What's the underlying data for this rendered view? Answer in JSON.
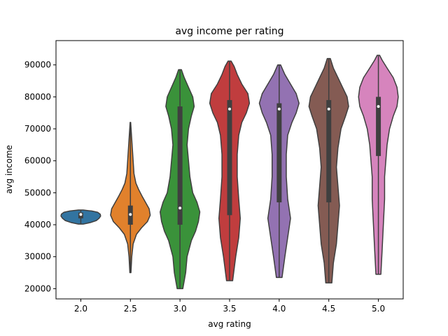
{
  "chart_data": {
    "type": "violin",
    "title": "avg income per rating",
    "xlabel": "avg rating",
    "ylabel": "avg income",
    "categories": [
      "2.0",
      "2.5",
      "3.0",
      "3.5",
      "4.0",
      "4.5",
      "5.0"
    ],
    "ylim": [
      16800,
      97600
    ],
    "yticks": [
      "20000",
      "30000",
      "40000",
      "50000",
      "60000",
      "70000",
      "80000",
      "90000"
    ],
    "grid": false,
    "legend": "none",
    "series": [
      {
        "category": "2.0",
        "color": "#3274a1",
        "min": 40200,
        "max": 44600,
        "q1": 42000,
        "q3": 43800,
        "median": 43200,
        "density": [
          [
            40200,
            0.12
          ],
          [
            40700,
            0.5
          ],
          [
            41300,
            0.78
          ],
          [
            42000,
            0.92
          ],
          [
            42700,
            1.0
          ],
          [
            43300,
            0.98
          ],
          [
            43900,
            0.85
          ],
          [
            44300,
            0.55
          ],
          [
            44600,
            0.12
          ]
        ]
      },
      {
        "category": "2.5",
        "color": "#e1812c",
        "min": 25000,
        "max": 72000,
        "q1": 40000,
        "q3": 46000,
        "median": 43200,
        "density": [
          [
            25000,
            0.02
          ],
          [
            30000,
            0.05
          ],
          [
            34000,
            0.1
          ],
          [
            37000,
            0.22
          ],
          [
            39000,
            0.4
          ],
          [
            41000,
            0.62
          ],
          [
            43000,
            0.72
          ],
          [
            45000,
            0.68
          ],
          [
            47000,
            0.55
          ],
          [
            49000,
            0.42
          ],
          [
            51000,
            0.3
          ],
          [
            53000,
            0.2
          ],
          [
            56000,
            0.13
          ],
          [
            60000,
            0.1
          ],
          [
            64000,
            0.07
          ],
          [
            68000,
            0.04
          ],
          [
            72000,
            0.01
          ]
        ]
      },
      {
        "category": "3.0",
        "color": "#3a923a",
        "min": 20000,
        "max": 88500,
        "q1": 40000,
        "q3": 77000,
        "median": 45200,
        "density": [
          [
            20000,
            0.02
          ],
          [
            25000,
            0.04
          ],
          [
            30000,
            0.05
          ],
          [
            35000,
            0.08
          ],
          [
            38000,
            0.11
          ],
          [
            41000,
            0.13
          ],
          [
            44000,
            0.14
          ],
          [
            47000,
            0.12
          ],
          [
            50000,
            0.09
          ],
          [
            55000,
            0.07
          ],
          [
            60000,
            0.06
          ],
          [
            65000,
            0.05
          ],
          [
            70000,
            0.06
          ],
          [
            74000,
            0.08
          ],
          [
            77000,
            0.1
          ],
          [
            80000,
            0.09
          ],
          [
            83000,
            0.06
          ],
          [
            86000,
            0.03
          ],
          [
            88500,
            0.01
          ]
        ]
      },
      {
        "category": "3.5",
        "color": "#c03d3e",
        "min": 22500,
        "max": 91200,
        "q1": 43000,
        "q3": 79000,
        "median": 76200,
        "density": [
          [
            22500,
            0.02
          ],
          [
            30000,
            0.04
          ],
          [
            36000,
            0.06
          ],
          [
            42000,
            0.07
          ],
          [
            48000,
            0.06
          ],
          [
            55000,
            0.05
          ],
          [
            62000,
            0.05
          ],
          [
            68000,
            0.06
          ],
          [
            72000,
            0.08
          ],
          [
            75000,
            0.11
          ],
          [
            78000,
            0.13
          ],
          [
            81000,
            0.12
          ],
          [
            84000,
            0.08
          ],
          [
            87000,
            0.05
          ],
          [
            89500,
            0.03
          ],
          [
            91200,
            0.01
          ]
        ]
      },
      {
        "category": "4.0",
        "color": "#9372b2",
        "min": 23500,
        "max": 90000,
        "q1": 47000,
        "q3": 78000,
        "median": 76200,
        "density": [
          [
            23500,
            0.02
          ],
          [
            30000,
            0.04
          ],
          [
            36000,
            0.06
          ],
          [
            42000,
            0.08
          ],
          [
            48000,
            0.06
          ],
          [
            55000,
            0.05
          ],
          [
            62000,
            0.05
          ],
          [
            68000,
            0.06
          ],
          [
            72000,
            0.09
          ],
          [
            75000,
            0.12
          ],
          [
            78000,
            0.14
          ],
          [
            81000,
            0.12
          ],
          [
            84000,
            0.08
          ],
          [
            87000,
            0.04
          ],
          [
            90000,
            0.01
          ]
        ]
      },
      {
        "category": "4.5",
        "color": "#845b53",
        "min": 21800,
        "max": 92000,
        "q1": 47000,
        "q3": 79000,
        "median": 76200,
        "density": [
          [
            21800,
            0.02
          ],
          [
            28000,
            0.03
          ],
          [
            34000,
            0.05
          ],
          [
            40000,
            0.06
          ],
          [
            46000,
            0.07
          ],
          [
            52000,
            0.06
          ],
          [
            58000,
            0.05
          ],
          [
            64000,
            0.06
          ],
          [
            70000,
            0.08
          ],
          [
            74000,
            0.11
          ],
          [
            77000,
            0.13
          ],
          [
            80000,
            0.12
          ],
          [
            83000,
            0.09
          ],
          [
            86000,
            0.06
          ],
          [
            89000,
            0.03
          ],
          [
            92000,
            0.01
          ]
        ]
      },
      {
        "category": "5.0",
        "color": "#d684bd",
        "min": 24500,
        "max": 93000,
        "q1": 61500,
        "q3": 80000,
        "median": 77000,
        "density": [
          [
            24500,
            0.02
          ],
          [
            32000,
            0.03
          ],
          [
            40000,
            0.04
          ],
          [
            48000,
            0.05
          ],
          [
            55000,
            0.05
          ],
          [
            60000,
            0.06
          ],
          [
            65000,
            0.07
          ],
          [
            70000,
            0.09
          ],
          [
            74000,
            0.12
          ],
          [
            77000,
            0.15
          ],
          [
            80000,
            0.16
          ],
          [
            83000,
            0.15
          ],
          [
            86000,
            0.12
          ],
          [
            89000,
            0.07
          ],
          [
            91500,
            0.03
          ],
          [
            93000,
            0.01
          ]
        ]
      }
    ]
  }
}
